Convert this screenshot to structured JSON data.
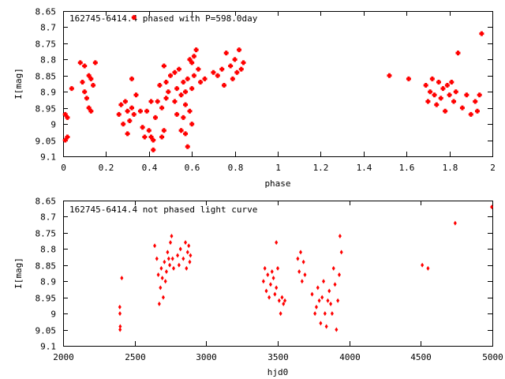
{
  "colors": {
    "marker": "#ff0000",
    "axis": "#000000",
    "background": "#ffffff"
  },
  "chart_data": [
    {
      "type": "scatter",
      "title": "162745-6414.4 phased with P=598.0day",
      "xlabel": "phase",
      "ylabel": "I[mag]",
      "xlim": [
        0,
        2
      ],
      "ylim": [
        8.65,
        9.1
      ],
      "y_inverted": true,
      "grid": false,
      "x_ticks": [
        "0",
        "0.2",
        "0.4",
        "0.6",
        "0.8",
        "1",
        "1.2",
        "1.4",
        "1.6",
        "1.8",
        "2"
      ],
      "y_ticks": [
        "8.65",
        "8.7",
        "8.75",
        "8.8",
        "8.85",
        "8.9",
        "8.95",
        "9",
        "9.05",
        "9.1"
      ],
      "series": [
        {
          "marker": "filled-star",
          "points": [
            [
              0.01,
              8.97
            ],
            [
              0.02,
              8.98
            ],
            [
              0.02,
              9.04
            ],
            [
              0.01,
              9.05
            ],
            [
              0.04,
              8.89
            ],
            [
              0.08,
              8.81
            ],
            [
              0.09,
              8.87
            ],
            [
              0.1,
              8.82
            ],
            [
              0.1,
              8.9
            ],
            [
              0.11,
              8.92
            ],
            [
              0.12,
              8.85
            ],
            [
              0.13,
              8.86
            ],
            [
              0.12,
              8.95
            ],
            [
              0.13,
              8.96
            ],
            [
              0.14,
              8.88
            ],
            [
              0.15,
              8.81
            ],
            [
              0.26,
              8.97
            ],
            [
              0.27,
              8.94
            ],
            [
              0.28,
              9.0
            ],
            [
              0.29,
              8.93
            ],
            [
              0.3,
              8.96
            ],
            [
              0.3,
              9.03
            ],
            [
              0.31,
              8.99
            ],
            [
              0.32,
              8.95
            ],
            [
              0.33,
              8.97
            ],
            [
              0.34,
              8.91
            ],
            [
              0.32,
              8.86
            ],
            [
              0.33,
              8.67
            ],
            [
              0.36,
              8.96
            ],
            [
              0.37,
              9.01
            ],
            [
              0.38,
              9.04
            ],
            [
              0.39,
              8.96
            ],
            [
              0.4,
              9.02
            ],
            [
              0.41,
              8.93
            ],
            [
              0.42,
              9.05
            ],
            [
              0.43,
              8.98
            ],
            [
              0.44,
              8.93
            ],
            [
              0.45,
              8.88
            ],
            [
              0.46,
              8.95
            ],
            [
              0.47,
              9.02
            ],
            [
              0.48,
              8.87
            ],
            [
              0.49,
              8.9
            ],
            [
              0.5,
              8.85
            ],
            [
              0.52,
              8.93
            ],
            [
              0.53,
              8.97
            ],
            [
              0.42,
              9.08
            ],
            [
              0.41,
              9.04
            ],
            [
              0.46,
              9.04
            ],
            [
              0.47,
              8.82
            ],
            [
              0.48,
              8.92
            ],
            [
              0.52,
              8.84
            ],
            [
              0.53,
              8.89
            ],
            [
              0.54,
              8.83
            ],
            [
              0.55,
              8.91
            ],
            [
              0.56,
              8.87
            ],
            [
              0.57,
              8.94
            ],
            [
              0.58,
              8.86
            ],
            [
              0.59,
              8.8
            ],
            [
              0.6,
              8.89
            ],
            [
              0.61,
              8.85
            ],
            [
              0.62,
              8.77
            ],
            [
              0.63,
              8.83
            ],
            [
              0.64,
              8.87
            ],
            [
              0.66,
              8.86
            ],
            [
              0.56,
              8.98
            ],
            [
              0.57,
              9.03
            ],
            [
              0.58,
              9.07
            ],
            [
              0.59,
              8.96
            ],
            [
              0.6,
              9.0
            ],
            [
              0.55,
              9.02
            ],
            [
              0.57,
              8.9
            ],
            [
              0.6,
              8.81
            ],
            [
              0.61,
              8.79
            ],
            [
              0.7,
              8.84
            ],
            [
              0.72,
              8.85
            ],
            [
              0.74,
              8.83
            ],
            [
              0.75,
              8.88
            ],
            [
              0.76,
              8.78
            ],
            [
              0.78,
              8.82
            ],
            [
              0.79,
              8.86
            ],
            [
              0.8,
              8.8
            ],
            [
              0.81,
              8.84
            ],
            [
              0.82,
              8.77
            ],
            [
              0.83,
              8.83
            ],
            [
              0.84,
              8.81
            ],
            [
              1.52,
              8.85
            ],
            [
              1.61,
              8.86
            ],
            [
              1.69,
              8.88
            ],
            [
              1.7,
              8.93
            ],
            [
              1.71,
              8.9
            ],
            [
              1.72,
              8.86
            ],
            [
              1.73,
              8.91
            ],
            [
              1.74,
              8.94
            ],
            [
              1.75,
              8.87
            ],
            [
              1.76,
              8.92
            ],
            [
              1.77,
              8.89
            ],
            [
              1.78,
              8.96
            ],
            [
              1.79,
              8.88
            ],
            [
              1.8,
              8.91
            ],
            [
              1.81,
              8.87
            ],
            [
              1.82,
              8.93
            ],
            [
              1.83,
              8.9
            ],
            [
              1.84,
              8.78
            ],
            [
              1.86,
              8.95
            ],
            [
              1.88,
              8.91
            ],
            [
              1.9,
              8.97
            ],
            [
              1.92,
              8.93
            ],
            [
              1.93,
              8.96
            ],
            [
              1.94,
              8.91
            ],
            [
              1.95,
              8.72
            ]
          ]
        }
      ]
    },
    {
      "type": "scatter",
      "title": "162745-6414.4 not phased light curve",
      "xlabel": "hjd0",
      "ylabel": "I[mag]",
      "xlim": [
        2000,
        5000
      ],
      "ylim": [
        8.65,
        9.1
      ],
      "y_inverted": true,
      "grid": false,
      "x_ticks": [
        "2000",
        "2500",
        "3000",
        "3500",
        "4000",
        "4500",
        "5000"
      ],
      "y_ticks": [
        "8.65",
        "8.7",
        "8.75",
        "8.8",
        "8.85",
        "8.9",
        "8.95",
        "9",
        "9.05",
        "9.1"
      ],
      "series": [
        {
          "marker": "diamond",
          "points": [
            [
              2396,
              8.98
            ],
            [
              2397,
              9.0
            ],
            [
              2398,
              9.05
            ],
            [
              2399,
              9.04
            ],
            [
              2410,
              8.89
            ],
            [
              2640,
              8.79
            ],
            [
              2655,
              8.83
            ],
            [
              2665,
              8.88
            ],
            [
              2672,
              8.97
            ],
            [
              2680,
              8.92
            ],
            [
              2686,
              8.86
            ],
            [
              2693,
              8.89
            ],
            [
              2700,
              8.95
            ],
            [
              2708,
              8.84
            ],
            [
              2715,
              8.9
            ],
            [
              2722,
              8.87
            ],
            [
              2730,
              8.81
            ],
            [
              2738,
              8.83
            ],
            [
              2745,
              8.85
            ],
            [
              2750,
              8.78
            ],
            [
              2758,
              8.76
            ],
            [
              2765,
              8.83
            ],
            [
              2772,
              8.86
            ],
            [
              2800,
              8.82
            ],
            [
              2810,
              8.85
            ],
            [
              2820,
              8.8
            ],
            [
              2840,
              8.83
            ],
            [
              2855,
              8.78
            ],
            [
              2862,
              8.86
            ],
            [
              2870,
              8.81
            ],
            [
              2878,
              8.79
            ],
            [
              2885,
              8.84
            ],
            [
              2890,
              8.82
            ],
            [
              3400,
              8.9
            ],
            [
              3410,
              8.86
            ],
            [
              3420,
              8.93
            ],
            [
              3430,
              8.88
            ],
            [
              3440,
              8.95
            ],
            [
              3450,
              8.91
            ],
            [
              3460,
              8.87
            ],
            [
              3470,
              8.89
            ],
            [
              3480,
              8.94
            ],
            [
              3490,
              8.92
            ],
            [
              3500,
              8.86
            ],
            [
              3510,
              8.96
            ],
            [
              3520,
              9.0
            ],
            [
              3530,
              8.95
            ],
            [
              3540,
              8.97
            ],
            [
              3550,
              8.96
            ],
            [
              3490,
              8.78
            ],
            [
              3640,
              8.83
            ],
            [
              3650,
              8.87
            ],
            [
              3660,
              8.81
            ],
            [
              3670,
              8.9
            ],
            [
              3680,
              8.84
            ],
            [
              3690,
              8.88
            ],
            [
              3740,
              8.94
            ],
            [
              3760,
              9.0
            ],
            [
              3770,
              8.98
            ],
            [
              3780,
              8.92
            ],
            [
              3790,
              8.96
            ],
            [
              3800,
              9.03
            ],
            [
              3810,
              8.95
            ],
            [
              3820,
              8.9
            ],
            [
              3830,
              9.0
            ],
            [
              3840,
              9.04
            ],
            [
              3850,
              8.96
            ],
            [
              3860,
              8.93
            ],
            [
              3870,
              8.97
            ],
            [
              3880,
              9.0
            ],
            [
              3890,
              8.86
            ],
            [
              3900,
              8.91
            ],
            [
              3910,
              9.05
            ],
            [
              3920,
              8.96
            ],
            [
              3930,
              8.88
            ],
            [
              3935,
              8.76
            ],
            [
              3945,
              8.81
            ],
            [
              4510,
              8.85
            ],
            [
              4550,
              8.86
            ],
            [
              4740,
              8.72
            ],
            [
              4995,
              8.67
            ]
          ]
        }
      ]
    }
  ]
}
